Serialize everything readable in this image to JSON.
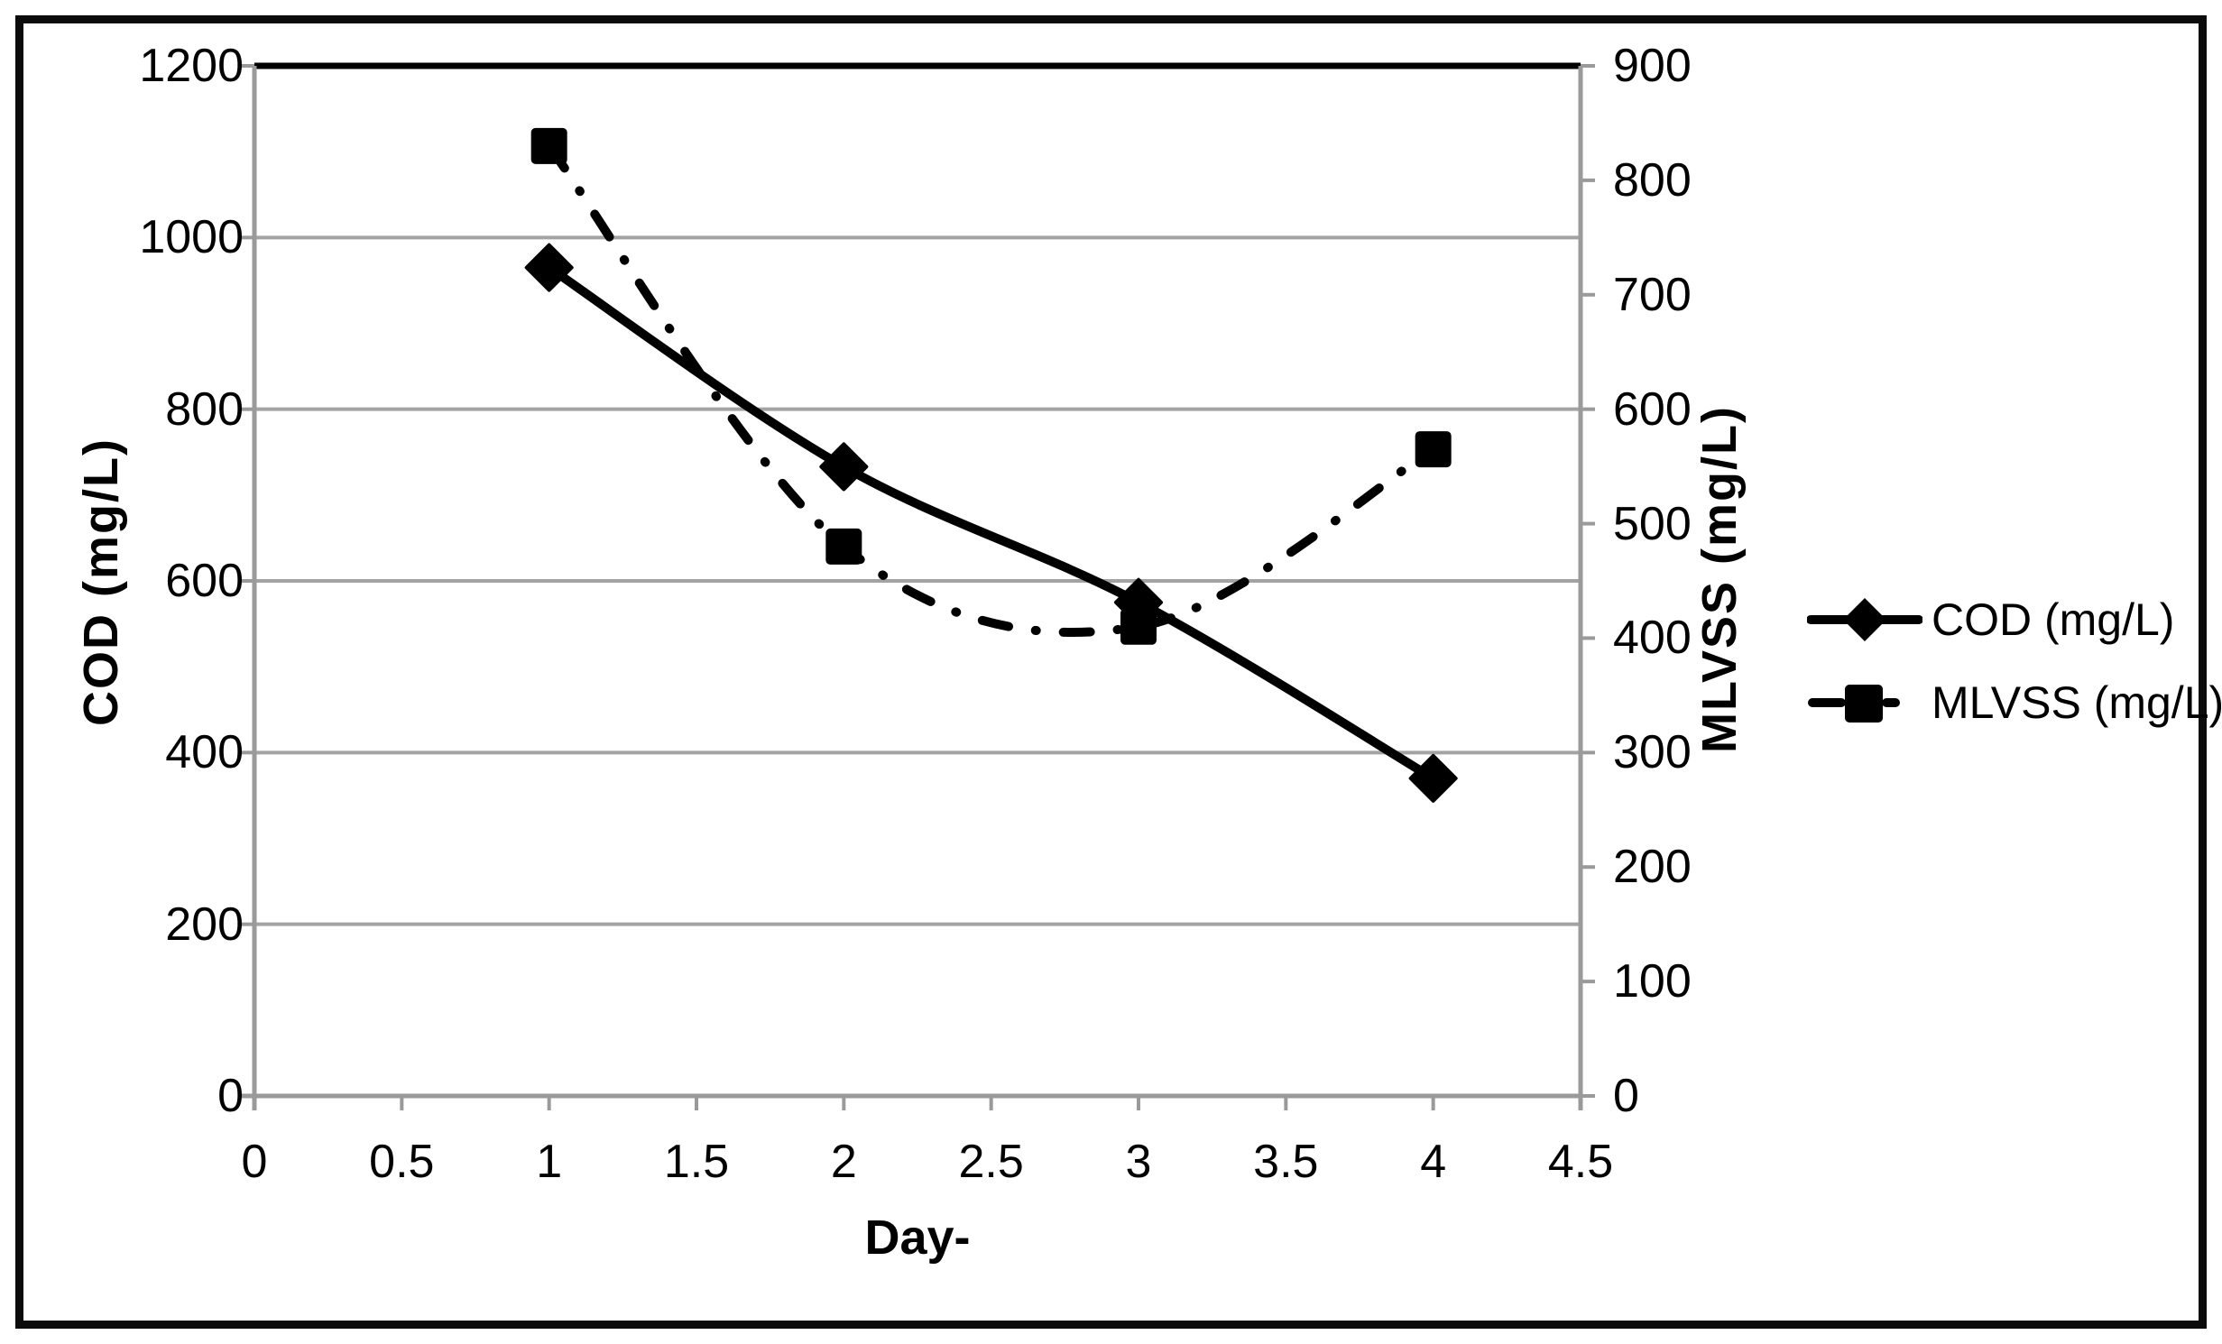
{
  "figure": {
    "background": "#ffffff",
    "frame_color": "#0b0b0b"
  },
  "colors": {
    "grid": "#a3a3a3",
    "axis": "#9a9a9a",
    "top_gridline": "#000000",
    "series": "#000000",
    "text": "#000000"
  },
  "legend": {
    "items": [
      {
        "label": "COD (mg/L)",
        "marker": "diamond",
        "line_style": "solid"
      },
      {
        "label": "MLVSS (mg/L)",
        "marker": "square",
        "line_style": "dash-dot"
      }
    ]
  },
  "chart_data": {
    "type": "line",
    "title": "",
    "xlabel": "Day-",
    "x": [
      1,
      2,
      3,
      4
    ],
    "x_axis": {
      "min": 0,
      "max": 4.5,
      "step": 0.5,
      "tick_labels": [
        "0",
        "0.5",
        "1",
        "1.5",
        "2",
        "2.5",
        "3",
        "3.5",
        "4",
        "4.5"
      ]
    },
    "y_left": {
      "label": "COD (mg/L)",
      "min": 0,
      "max": 1200,
      "step": 200,
      "tick_labels": [
        "1200",
        "1000",
        "800",
        "600",
        "400",
        "200",
        "0"
      ]
    },
    "y_right": {
      "label": "MLVSS (mg/L)",
      "min": 0,
      "max": 900,
      "step": 100,
      "tick_labels": [
        "900",
        "800",
        "700",
        "600",
        "500",
        "400",
        "300",
        "200",
        "100",
        "0"
      ]
    },
    "series": [
      {
        "name": "COD (mg/L)",
        "axis": "left",
        "marker": "diamond",
        "line_style": "solid",
        "color": "#000000",
        "values": [
          965,
          733,
          575,
          370
        ]
      },
      {
        "name": "MLVSS (mg/L)",
        "axis": "right",
        "marker": "square",
        "line_style": "dash-dot",
        "color": "#000000",
        "values": [
          830,
          480,
          410,
          565
        ]
      }
    ],
    "legend_position": "right",
    "grid": "horizontal"
  }
}
